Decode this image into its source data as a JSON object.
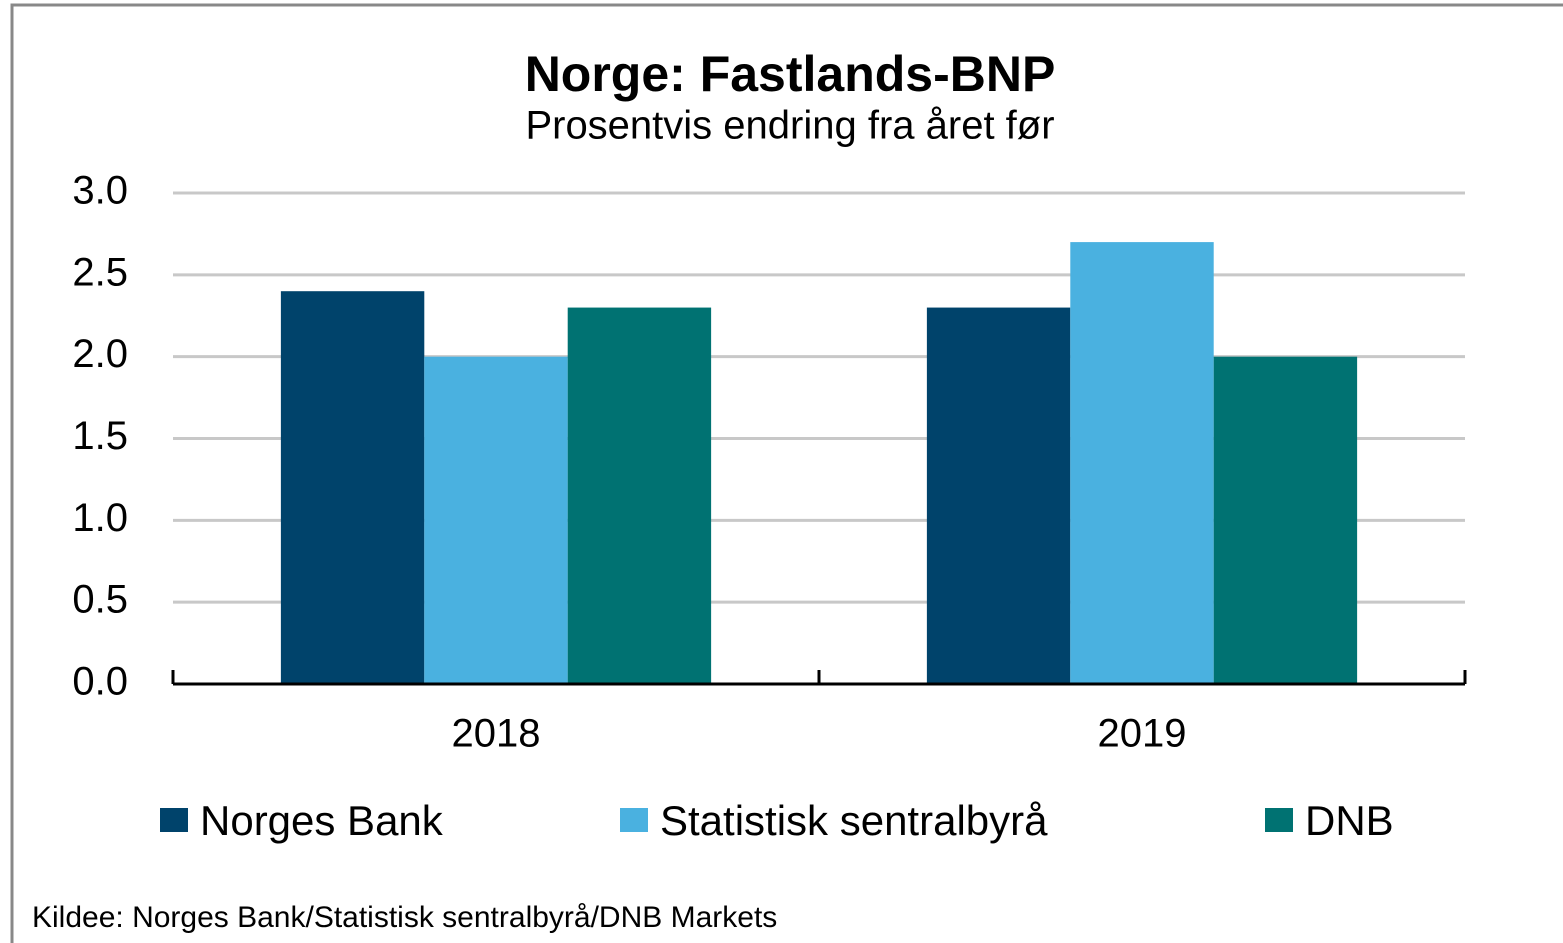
{
  "chart_data": {
    "type": "bar",
    "title": "Norge: Fastlands-BNP",
    "subtitle": "Prosentvis endring fra året før",
    "categories": [
      "2018",
      "2019"
    ],
    "series": [
      {
        "name": "Norges Bank",
        "color": "#00436b",
        "values": [
          2.4,
          2.3
        ]
      },
      {
        "name": "Statistisk sentralbyrå",
        "color": "#4ab1e0",
        "values": [
          2.0,
          2.7
        ]
      },
      {
        "name": "DNB",
        "color": "#007272",
        "values": [
          2.3,
          2.0
        ]
      }
    ],
    "ylim": [
      0,
      3
    ],
    "yticks": [
      {
        "value": 0,
        "label": "0.0"
      },
      {
        "value": 0.5,
        "label": "0.5"
      },
      {
        "value": 1,
        "label": "1.0"
      },
      {
        "value": 1.5,
        "label": "1.5"
      },
      {
        "value": 2,
        "label": "2.0"
      },
      {
        "value": 2.5,
        "label": "2.5"
      },
      {
        "value": 3,
        "label": "3.0"
      }
    ],
    "grid": true,
    "legend": "bottom",
    "source": "Kildee: Norges Bank/Statistisk sentralbyrå/DNB Markets"
  }
}
